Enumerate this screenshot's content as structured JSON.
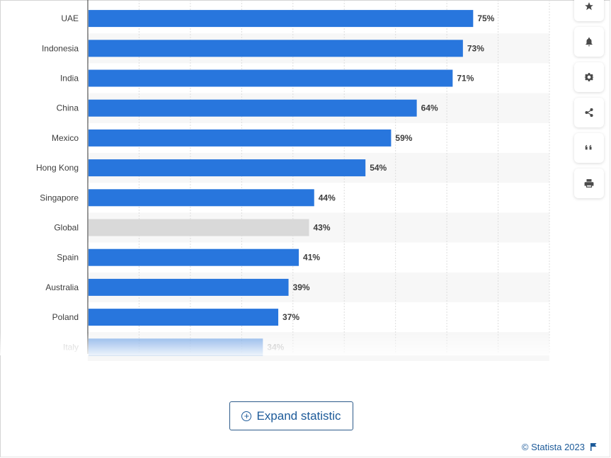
{
  "chart_data": {
    "type": "bar",
    "orientation": "horizontal",
    "categories": [
      "UAE",
      "Indonesia",
      "India",
      "China",
      "Mexico",
      "Hong Kong",
      "Singapore",
      "Global",
      "Spain",
      "Australia",
      "Poland",
      "Italy"
    ],
    "values": [
      75,
      73,
      71,
      64,
      59,
      54,
      44,
      43,
      41,
      39,
      37,
      34
    ],
    "value_labels": [
      "75%",
      "73%",
      "71%",
      "64%",
      "59%",
      "54%",
      "44%",
      "43%",
      "41%",
      "39%",
      "37%",
      "34%"
    ],
    "highlight_category": "Global",
    "xlim": [
      0,
      90
    ],
    "grid": true,
    "colors": {
      "bar": "#2876dd",
      "highlight": "#d9d9d9",
      "grid": "#dddddd",
      "band": "#f7f7f7"
    }
  },
  "toolbar": {
    "buttons": [
      {
        "name": "favorite-button",
        "icon": "star-icon"
      },
      {
        "name": "notification-button",
        "icon": "bell-icon"
      },
      {
        "name": "settings-button",
        "icon": "gear-icon"
      },
      {
        "name": "share-button",
        "icon": "share-icon"
      },
      {
        "name": "cite-button",
        "icon": "quote-icon"
      },
      {
        "name": "print-button",
        "icon": "print-icon"
      }
    ]
  },
  "expand": {
    "label": "Expand statistic",
    "icon": "plus-circle-icon"
  },
  "credit": {
    "text": "© Statista 2023",
    "icon": "flag-icon"
  }
}
